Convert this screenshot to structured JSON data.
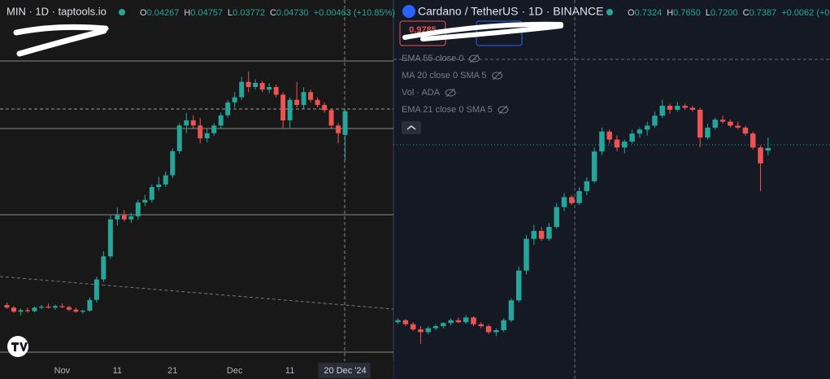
{
  "chart_data": [
    {
      "type": "candlestick",
      "title": "MIN · 1D · taptools.io",
      "ohlc": [
        {
          "label": "O",
          "value": "0.04267"
        },
        {
          "label": "H",
          "value": "0.04757"
        },
        {
          "label": "L",
          "value": "0.03772"
        },
        {
          "label": "C",
          "value": "0.04730"
        },
        {
          "label": "",
          "value": "+0.00463 (+10.85%)"
        }
      ],
      "up_color": "#26a69a",
      "down_color": "#ef5350",
      "ylim": [
        0,
        0.065
      ],
      "xlim": [
        -1,
        56
      ],
      "xticks": [
        {
          "value": 8,
          "label": "Nov"
        },
        {
          "value": 16,
          "label": "11"
        },
        {
          "value": 24,
          "label": "21"
        },
        {
          "value": 33,
          "label": "Dec"
        },
        {
          "value": 41,
          "label": "11"
        },
        {
          "value": 49,
          "label": "20 Dec '24"
        }
      ],
      "candles": [
        [
          0.0095,
          0.01,
          0.0088,
          0.009
        ],
        [
          0.009,
          0.0093,
          0.008,
          0.0082
        ],
        [
          0.0082,
          0.0088,
          0.0075,
          0.0085
        ],
        [
          0.0085,
          0.009,
          0.008,
          0.0083
        ],
        [
          0.0083,
          0.0092,
          0.0081,
          0.009
        ],
        [
          0.009,
          0.0095,
          0.0087,
          0.0092
        ],
        [
          0.0092,
          0.0098,
          0.0088,
          0.009
        ],
        [
          0.009,
          0.0096,
          0.0086,
          0.0093
        ],
        [
          0.0093,
          0.0098,
          0.0089,
          0.0091
        ],
        [
          0.0091,
          0.0094,
          0.0083,
          0.0086
        ],
        [
          0.0086,
          0.009,
          0.008,
          0.0082
        ],
        [
          0.0082,
          0.0086,
          0.0078,
          0.0084
        ],
        [
          0.0084,
          0.011,
          0.0082,
          0.0105
        ],
        [
          0.0105,
          0.015,
          0.01,
          0.0145
        ],
        [
          0.0145,
          0.02,
          0.014,
          0.019
        ],
        [
          0.019,
          0.027,
          0.0185,
          0.0262
        ],
        [
          0.0262,
          0.0285,
          0.025,
          0.027
        ],
        [
          0.027,
          0.028,
          0.0258,
          0.0262
        ],
        [
          0.0262,
          0.0275,
          0.0255,
          0.0268
        ],
        [
          0.0268,
          0.03,
          0.0262,
          0.0295
        ],
        [
          0.0295,
          0.031,
          0.0288,
          0.03
        ],
        [
          0.03,
          0.033,
          0.0295,
          0.0325
        ],
        [
          0.0325,
          0.0345,
          0.0318,
          0.033
        ],
        [
          0.033,
          0.0355,
          0.0325,
          0.0348
        ],
        [
          0.0348,
          0.04,
          0.0342,
          0.0395
        ],
        [
          0.0395,
          0.045,
          0.039,
          0.0445
        ],
        [
          0.0445,
          0.047,
          0.043,
          0.0455
        ],
        [
          0.0455,
          0.0465,
          0.044,
          0.0445
        ],
        [
          0.0445,
          0.046,
          0.041,
          0.042
        ],
        [
          0.042,
          0.044,
          0.0412,
          0.043
        ],
        [
          0.043,
          0.045,
          0.0425,
          0.0445
        ],
        [
          0.0445,
          0.047,
          0.044,
          0.0465
        ],
        [
          0.0465,
          0.0495,
          0.046,
          0.049
        ],
        [
          0.049,
          0.051,
          0.048,
          0.05
        ],
        [
          0.05,
          0.054,
          0.0495,
          0.053
        ],
        [
          0.053,
          0.055,
          0.051,
          0.052
        ],
        [
          0.052,
          0.0535,
          0.0515,
          0.0528
        ],
        [
          0.0528,
          0.0532,
          0.051,
          0.0515
        ],
        [
          0.0515,
          0.0528,
          0.0508,
          0.052
        ],
        [
          0.052,
          0.0525,
          0.05,
          0.0505
        ],
        [
          0.0505,
          0.051,
          0.044,
          0.0455
        ],
        [
          0.0455,
          0.05,
          0.044,
          0.0495
        ],
        [
          0.0495,
          0.053,
          0.048,
          0.0485
        ],
        [
          0.0485,
          0.052,
          0.0478,
          0.051
        ],
        [
          0.051,
          0.0515,
          0.049,
          0.0495
        ],
        [
          0.0495,
          0.05,
          0.048,
          0.0485
        ],
        [
          0.0485,
          0.049,
          0.047,
          0.0475
        ],
        [
          0.0475,
          0.0478,
          0.044,
          0.0445
        ],
        [
          0.0445,
          0.045,
          0.041,
          0.043
        ],
        [
          0.04267,
          0.04757,
          0.03772,
          0.0473
        ]
      ]
    },
    {
      "type": "candlestick",
      "title": "Cardano / TetherUS · 1D · BINANCE",
      "ohlc": [
        {
          "label": "O",
          "value": "0.7324"
        },
        {
          "label": "H",
          "value": "0.7650"
        },
        {
          "label": "L",
          "value": "0.7200"
        },
        {
          "label": "C",
          "value": "0.7387"
        },
        {
          "label": "",
          "value": "+0.0062 (+0"
        }
      ],
      "sell_price": "0.9785",
      "indicators": [
        "EMA 55 close 0",
        "MA 20 close 0 SMA 5",
        "Vol · ADA",
        "EMA 21 close 0 SMA 5"
      ],
      "up_color": "#26a69a",
      "down_color": "#ef5350",
      "ylim": [
        0.2,
        1.05
      ],
      "xlim": [
        -0.6,
        57.2
      ],
      "candles": [
        [
          0.3,
          0.31,
          0.295,
          0.305
        ],
        [
          0.305,
          0.308,
          0.29,
          0.295
        ],
        [
          0.295,
          0.3,
          0.278,
          0.282
        ],
        [
          0.282,
          0.29,
          0.245,
          0.275
        ],
        [
          0.275,
          0.29,
          0.27,
          0.285
        ],
        [
          0.285,
          0.295,
          0.28,
          0.29
        ],
        [
          0.29,
          0.3,
          0.285,
          0.298
        ],
        [
          0.298,
          0.31,
          0.292,
          0.305
        ],
        [
          0.305,
          0.312,
          0.298,
          0.3
        ],
        [
          0.3,
          0.318,
          0.296,
          0.312
        ],
        [
          0.312,
          0.315,
          0.29,
          0.295
        ],
        [
          0.295,
          0.3,
          0.285,
          0.29
        ],
        [
          0.29,
          0.295,
          0.27,
          0.275
        ],
        [
          0.275,
          0.285,
          0.265,
          0.28
        ],
        [
          0.28,
          0.31,
          0.275,
          0.305
        ],
        [
          0.305,
          0.36,
          0.3,
          0.355
        ],
        [
          0.355,
          0.44,
          0.35,
          0.43
        ],
        [
          0.43,
          0.52,
          0.42,
          0.51
        ],
        [
          0.51,
          0.545,
          0.495,
          0.53
        ],
        [
          0.53,
          0.54,
          0.505,
          0.51
        ],
        [
          0.51,
          0.55,
          0.505,
          0.54
        ],
        [
          0.54,
          0.6,
          0.535,
          0.59
        ],
        [
          0.59,
          0.625,
          0.58,
          0.615
        ],
        [
          0.615,
          0.62,
          0.595,
          0.6
        ],
        [
          0.6,
          0.64,
          0.595,
          0.63
        ],
        [
          0.63,
          0.665,
          0.62,
          0.655
        ],
        [
          0.655,
          0.74,
          0.65,
          0.73
        ],
        [
          0.73,
          0.79,
          0.72,
          0.78
        ],
        [
          0.78,
          0.785,
          0.75,
          0.76
        ],
        [
          0.76,
          0.77,
          0.73,
          0.74
        ],
        [
          0.74,
          0.76,
          0.725,
          0.755
        ],
        [
          0.755,
          0.785,
          0.75,
          0.775
        ],
        [
          0.775,
          0.79,
          0.765,
          0.785
        ],
        [
          0.785,
          0.805,
          0.77,
          0.795
        ],
        [
          0.795,
          0.83,
          0.79,
          0.82
        ],
        [
          0.82,
          0.86,
          0.815,
          0.845
        ],
        [
          0.845,
          0.85,
          0.825,
          0.835
        ],
        [
          0.835,
          0.855,
          0.83,
          0.845
        ],
        [
          0.845,
          0.85,
          0.835,
          0.84
        ],
        [
          0.84,
          0.845,
          0.83,
          0.835
        ],
        [
          0.835,
          0.84,
          0.74,
          0.765
        ],
        [
          0.765,
          0.8,
          0.76,
          0.79
        ],
        [
          0.79,
          0.815,
          0.785,
          0.81
        ],
        [
          0.81,
          0.82,
          0.8,
          0.805
        ],
        [
          0.805,
          0.81,
          0.79,
          0.795
        ],
        [
          0.795,
          0.805,
          0.785,
          0.79
        ],
        [
          0.79,
          0.795,
          0.77,
          0.775
        ],
        [
          0.775,
          0.78,
          0.735,
          0.74
        ],
        [
          0.74,
          0.745,
          0.63,
          0.7
        ],
        [
          0.7324,
          0.765,
          0.72,
          0.7387
        ]
      ]
    }
  ]
}
